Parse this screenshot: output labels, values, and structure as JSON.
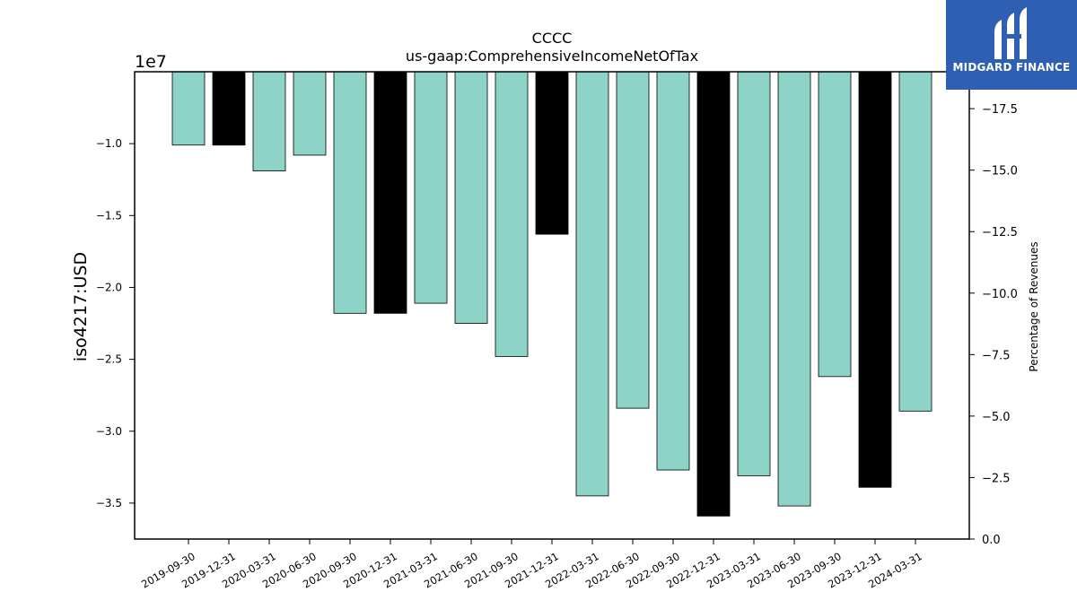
{
  "chart_data": {
    "type": "bar",
    "title": "CCCC",
    "subtitle": "us-gaap:ComprehensiveIncomeNetOfTax",
    "ylabel": "iso4217:USD",
    "y2label": "Percentage of Revenues",
    "offset_label": "1e7",
    "categories": [
      "2019-09-30",
      "2019-12-31",
      "2020-03-31",
      "2020-06-30",
      "2020-09-30",
      "2020-12-31",
      "2021-03-31",
      "2021-06-30",
      "2021-09-30",
      "2021-12-31",
      "2022-03-31",
      "2022-06-30",
      "2022-09-30",
      "2022-12-31",
      "2023-03-31",
      "2023-06-30",
      "2023-09-30",
      "2023-12-31",
      "2024-03-31"
    ],
    "values": [
      -10100000,
      -10100000,
      -11900000,
      -10800000,
      -21800000,
      -21800000,
      -21100000,
      -22500000,
      -24800000,
      -16300000,
      -34500000,
      -28400000,
      -32700000,
      -35900000,
      -33100000,
      -35200000,
      -26200000,
      -33900000,
      -28600000
    ],
    "annual": [
      false,
      true,
      false,
      false,
      false,
      true,
      false,
      false,
      false,
      true,
      false,
      false,
      false,
      true,
      false,
      false,
      false,
      true,
      false
    ],
    "ylim": [
      -37500000,
      -5000000
    ],
    "y_ticks": [
      -10000000,
      -15000000,
      -20000000,
      -25000000,
      -30000000,
      -35000000
    ],
    "y_tick_labels": [
      "−1.0",
      "−1.5",
      "−2.0",
      "−2.5",
      "−3.0",
      "−3.5"
    ],
    "y2lim": [
      0,
      -19
    ],
    "y2_ticks": [
      -17.5,
      -15.0,
      -12.5,
      -10.0,
      -7.5,
      -5.0,
      -2.5,
      0.0
    ],
    "y2_tick_labels": [
      "−17.5",
      "−15.0",
      "−12.5",
      "−10.0",
      "−7.5",
      "−5.0",
      "−2.5",
      "0.0"
    ],
    "colors": {
      "quarterly": "#8dd3c7",
      "annual": "#000000"
    },
    "grid": false
  },
  "logo": {
    "text": "MIDGARD FINANCE",
    "background": "#2f5fb3"
  }
}
